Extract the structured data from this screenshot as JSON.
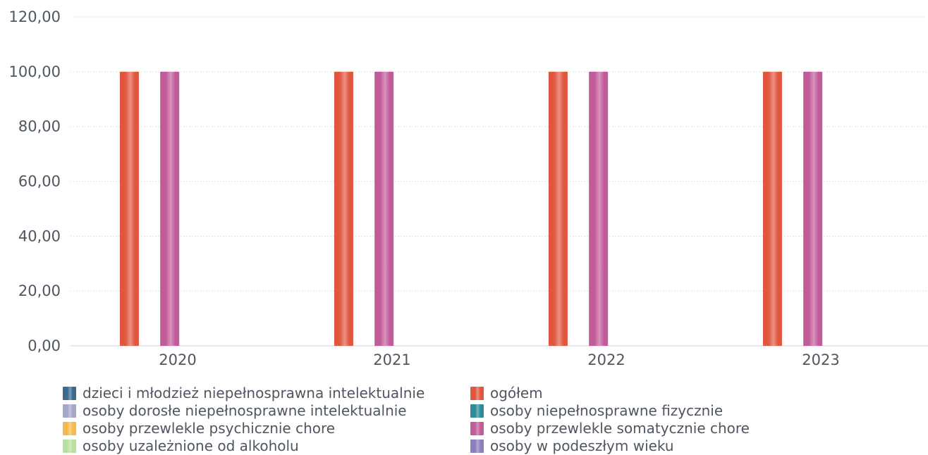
{
  "chart_data": {
    "type": "bar",
    "categories": [
      "2020",
      "2021",
      "2022",
      "2023"
    ],
    "ylim": [
      0,
      120
    ],
    "yticks": [
      "0,00",
      "20,00",
      "40,00",
      "60,00",
      "80,00",
      "100,00",
      "120,00"
    ],
    "ytick_values": [
      0,
      20,
      40,
      60,
      80,
      100,
      120
    ],
    "grid": true,
    "legend_position": "bottom",
    "series": [
      {
        "name": "dzieci i młodzież niepełnosprawna intelektualnie",
        "color": "#3b6a8f",
        "values": [
          0,
          0,
          0,
          0
        ]
      },
      {
        "name": "ogółem",
        "color": "#e0563f",
        "values": [
          100,
          100,
          100,
          100
        ]
      },
      {
        "name": "osoby dorosłe niepełnosprawne intelektualnie",
        "color": "#a6a6c8",
        "values": [
          0,
          0,
          0,
          0
        ]
      },
      {
        "name": "osoby niepełnosprawne fizycznie",
        "color": "#2e8b9a",
        "values": [
          0,
          0,
          0,
          0
        ]
      },
      {
        "name": "osoby przewlekle psychicznie chore",
        "color": "#f5b94e",
        "values": [
          0,
          0,
          0,
          0
        ]
      },
      {
        "name": "osoby przewlekle somatycznie chore",
        "color": "#c25b99",
        "values": [
          100,
          100,
          100,
          100
        ]
      },
      {
        "name": "osoby uzależnione od alkoholu",
        "color": "#b8e0a0",
        "values": [
          0,
          0,
          0,
          0
        ]
      },
      {
        "name": "osoby w podeszłym wieku",
        "color": "#8d7fbc",
        "values": [
          0,
          0,
          0,
          0
        ]
      }
    ]
  }
}
